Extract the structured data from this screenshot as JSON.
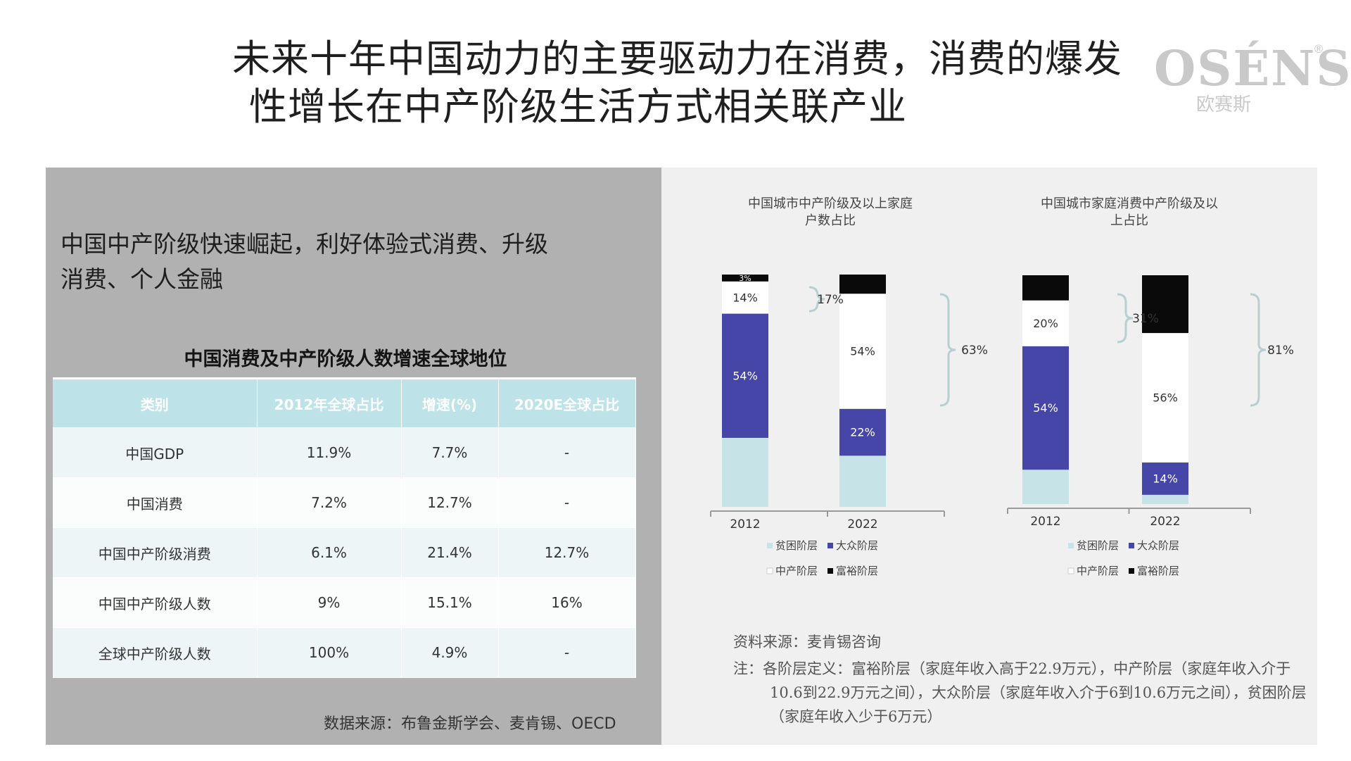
{
  "title": {
    "line1": "未来十年中国动力的主要驱动力在消费，消费的爆发",
    "line2": "性增长在中产阶级生活方式相关联产业"
  },
  "logo": {
    "main": "OSÉNS",
    "sub": "欧赛斯",
    "reg": "®"
  },
  "left": {
    "headline_line1": "中国中产阶级快速崛起，利好体验式消费、升级",
    "headline_line2": "消费、个人金融",
    "table_title": "中国消费及中产阶级人数增速全球地位",
    "columns": [
      "类别",
      "2012年全球占比",
      "增速(%)",
      "2020E全球占比"
    ],
    "rows": [
      [
        "中国GDP",
        "11.9%",
        "7.7%",
        "-"
      ],
      [
        "中国消费",
        "7.2%",
        "12.7%",
        "-"
      ],
      [
        "中国中产阶级消费",
        "6.1%",
        "21.4%",
        "12.7%"
      ],
      [
        "中国中产阶级人数",
        "9%",
        "15.1%",
        "16%"
      ],
      [
        "全球中产阶级人数",
        "100%",
        "4.9%",
        "-"
      ]
    ],
    "source": "数据来源：布鲁金斯学会、麦肯锡、OECD"
  },
  "colors": {
    "poor": "#c6e4e8",
    "mass": "#4646a8",
    "middle": "#ffffff",
    "rich": "#0a0a0a",
    "bracket": "#b8cfd1"
  },
  "chart_data": [
    {
      "type": "bar",
      "stacked": true,
      "title_line1": "中国城市中产阶级及以上家庭",
      "title_line2": "户数占比",
      "categories": [
        "2012",
        "2022"
      ],
      "series": [
        {
          "name": "贫困阶层",
          "values": [
            30,
            24
          ]
        },
        {
          "name": "大众阶层",
          "values": [
            54,
            22
          ]
        },
        {
          "name": "中产阶层",
          "values": [
            14,
            54
          ]
        },
        {
          "name": "富裕阶层",
          "values": [
            3,
            9
          ]
        }
      ],
      "data_labels": [
        [
          "",
          "54%",
          "14%",
          "3%"
        ],
        [
          "",
          "22%",
          "54%",
          ""
        ]
      ],
      "brackets": [
        "17%",
        "63%"
      ],
      "legend": [
        [
          "贫困阶层",
          "大众阶层"
        ],
        [
          "中产阶层",
          "富裕阶层"
        ]
      ]
    },
    {
      "type": "bar",
      "stacked": true,
      "title_line1": "中国城市家庭消费中产阶级及以",
      "title_line2": "上占比",
      "categories": [
        "2012",
        "2022"
      ],
      "series": [
        {
          "name": "贫困阶层",
          "values": [
            15,
            4
          ]
        },
        {
          "name": "大众阶层",
          "values": [
            54,
            14
          ]
        },
        {
          "name": "中产阶层",
          "values": [
            20,
            56
          ]
        },
        {
          "name": "富裕阶层",
          "values": [
            11,
            25
          ]
        }
      ],
      "data_labels": [
        [
          "",
          "54%",
          "20%",
          ""
        ],
        [
          "",
          "14%",
          "56%",
          ""
        ]
      ],
      "brackets": [
        "31%",
        "81%"
      ],
      "legend": [
        [
          "贫困阶层",
          "大众阶层"
        ],
        [
          "中产阶层",
          "富裕阶层"
        ]
      ]
    }
  ],
  "notes": {
    "source": "资料来源：麦肯锡咨询",
    "definition": "注：各阶层定义：富裕阶层（家庭年收入高于22.9万元），中产阶层（家庭年收入介于10.6到22.9万元之间），大众阶层（家庭年收入介于6到10.6万元之间），贫困阶层（家庭年收入少于6万元）"
  }
}
